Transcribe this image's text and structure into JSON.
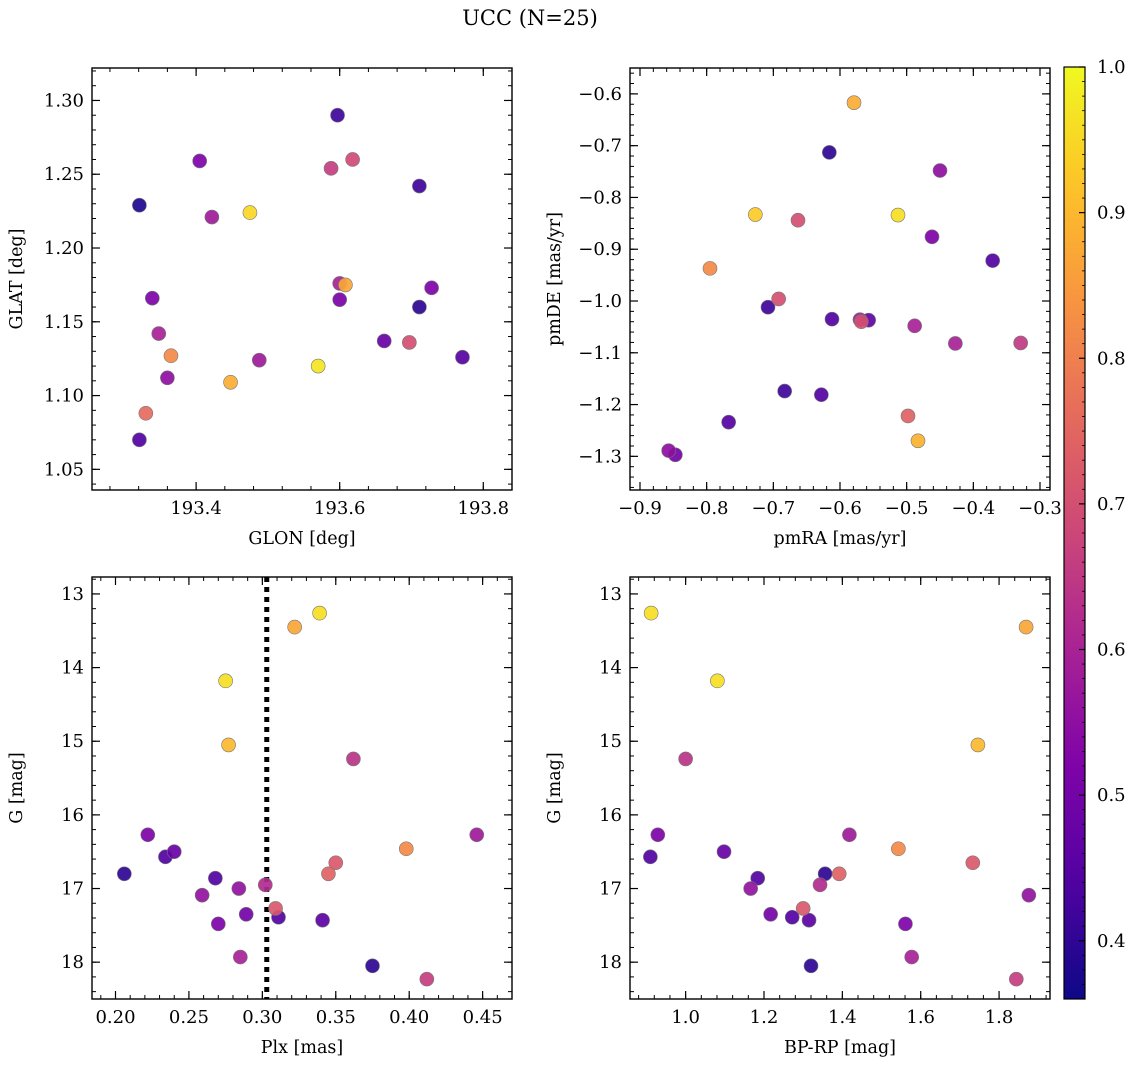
{
  "figure": {
    "title": "UCC (N=25)"
  },
  "colorbar": {
    "colormap": "plasma",
    "range": [
      0.36,
      1.0
    ],
    "ticks": [
      0.4,
      0.5,
      0.6,
      0.7,
      0.8,
      0.9,
      1.0
    ],
    "tick_labels": [
      "0.4",
      "0.5",
      "0.6",
      "0.7",
      "0.8",
      "0.9",
      "1.0"
    ]
  },
  "chart_data": [
    {
      "type": "scatter",
      "panel": "top-left",
      "xlabel": "GLON [deg]",
      "ylabel": "GLAT [deg]",
      "xlim": [
        193.255,
        193.84
      ],
      "ylim": [
        1.036,
        1.322
      ],
      "xticks": [
        193.4,
        193.6,
        193.8
      ],
      "yticks": [
        1.05,
        1.1,
        1.15,
        1.2,
        1.25,
        1.3
      ],
      "x_tick_labels": [
        "193.4",
        "193.6",
        "193.8"
      ],
      "y_tick_labels": [
        "1.05",
        "1.10",
        "1.15",
        "1.20",
        "1.25",
        "1.30"
      ],
      "points": [
        {
          "x": 193.321,
          "y": 1.229,
          "c": 0.38
        },
        {
          "x": 193.405,
          "y": 1.259,
          "c": 0.52
        },
        {
          "x": 193.422,
          "y": 1.221,
          "c": 0.58
        },
        {
          "x": 193.475,
          "y": 1.224,
          "c": 0.95
        },
        {
          "x": 193.597,
          "y": 1.29,
          "c": 0.42
        },
        {
          "x": 193.588,
          "y": 1.254,
          "c": 0.66
        },
        {
          "x": 193.618,
          "y": 1.26,
          "c": 0.69
        },
        {
          "x": 193.711,
          "y": 1.242,
          "c": 0.42
        },
        {
          "x": 193.339,
          "y": 1.166,
          "c": 0.52
        },
        {
          "x": 193.348,
          "y": 1.142,
          "c": 0.6
        },
        {
          "x": 193.365,
          "y": 1.127,
          "c": 0.82
        },
        {
          "x": 193.36,
          "y": 1.112,
          "c": 0.55
        },
        {
          "x": 193.33,
          "y": 1.088,
          "c": 0.76
        },
        {
          "x": 193.321,
          "y": 1.07,
          "c": 0.44
        },
        {
          "x": 193.448,
          "y": 1.109,
          "c": 0.88
        },
        {
          "x": 193.488,
          "y": 1.124,
          "c": 0.58
        },
        {
          "x": 193.57,
          "y": 1.12,
          "c": 0.97
        },
        {
          "x": 193.6,
          "y": 1.176,
          "c": 0.6
        },
        {
          "x": 193.608,
          "y": 1.175,
          "c": 0.87
        },
        {
          "x": 193.6,
          "y": 1.165,
          "c": 0.51
        },
        {
          "x": 193.662,
          "y": 1.137,
          "c": 0.48
        },
        {
          "x": 193.697,
          "y": 1.136,
          "c": 0.7
        },
        {
          "x": 193.711,
          "y": 1.16,
          "c": 0.4
        },
        {
          "x": 193.728,
          "y": 1.173,
          "c": 0.52
        },
        {
          "x": 193.771,
          "y": 1.126,
          "c": 0.45
        }
      ]
    },
    {
      "type": "scatter",
      "panel": "top-right",
      "xlabel": "pmRA [mas/yr]",
      "ylabel": "pmDE [mas/yr]",
      "xlim": [
        -0.915,
        -0.285
      ],
      "ylim": [
        -1.365,
        -0.55
      ],
      "xticks": [
        -0.9,
        -0.8,
        -0.7,
        -0.6,
        -0.5,
        -0.4,
        -0.3
      ],
      "yticks": [
        -1.3,
        -1.2,
        -1.1,
        -1.0,
        -0.9,
        -0.8,
        -0.7,
        -0.6
      ],
      "x_tick_labels": [
        "−0.9",
        "−0.8",
        "−0.7",
        "−0.6",
        "−0.5",
        "−0.4",
        "−0.3"
      ],
      "y_tick_labels": [
        "−1.3",
        "−1.2",
        "−1.1",
        "−1.0",
        "−0.9",
        "−0.8",
        "−0.7",
        "−0.6"
      ],
      "points": [
        {
          "x": -0.579,
          "y": -0.617,
          "c": 0.88
        },
        {
          "x": -0.616,
          "y": -0.713,
          "c": 0.4
        },
        {
          "x": -0.45,
          "y": -0.748,
          "c": 0.55
        },
        {
          "x": -0.727,
          "y": -0.833,
          "c": 0.93
        },
        {
          "x": -0.663,
          "y": -0.844,
          "c": 0.7
        },
        {
          "x": -0.513,
          "y": -0.834,
          "c": 0.96
        },
        {
          "x": -0.462,
          "y": -0.876,
          "c": 0.52
        },
        {
          "x": -0.371,
          "y": -0.922,
          "c": 0.44
        },
        {
          "x": -0.795,
          "y": -0.937,
          "c": 0.82
        },
        {
          "x": -0.692,
          "y": -0.996,
          "c": 0.7
        },
        {
          "x": -0.708,
          "y": -1.012,
          "c": 0.42
        },
        {
          "x": -0.612,
          "y": -1.035,
          "c": 0.44
        },
        {
          "x": -0.57,
          "y": -1.036,
          "c": 0.58
        },
        {
          "x": -0.568,
          "y": -1.04,
          "c": 0.7
        },
        {
          "x": -0.557,
          "y": -1.037,
          "c": 0.47
        },
        {
          "x": -0.488,
          "y": -1.048,
          "c": 0.6
        },
        {
          "x": -0.427,
          "y": -1.082,
          "c": 0.6
        },
        {
          "x": -0.329,
          "y": -1.081,
          "c": 0.65
        },
        {
          "x": -0.683,
          "y": -1.174,
          "c": 0.42
        },
        {
          "x": -0.628,
          "y": -1.181,
          "c": 0.44
        },
        {
          "x": -0.498,
          "y": -1.222,
          "c": 0.74
        },
        {
          "x": -0.767,
          "y": -1.234,
          "c": 0.45
        },
        {
          "x": -0.483,
          "y": -1.27,
          "c": 0.89
        },
        {
          "x": -0.857,
          "y": -1.289,
          "c": 0.55
        },
        {
          "x": -0.847,
          "y": -1.297,
          "c": 0.5
        }
      ]
    },
    {
      "type": "scatter",
      "panel": "bottom-left",
      "xlabel": "Plx [mas]",
      "ylabel": "G [mag]",
      "xlim": [
        0.184,
        0.47
      ],
      "ylim": [
        18.5,
        12.77
      ],
      "y_inverted": true,
      "xticks": [
        0.2,
        0.25,
        0.3,
        0.35,
        0.4,
        0.45
      ],
      "yticks": [
        13,
        14,
        15,
        16,
        17,
        18
      ],
      "x_tick_labels": [
        "0.20",
        "0.25",
        "0.30",
        "0.35",
        "0.40",
        "0.45"
      ],
      "y_tick_labels": [
        "13",
        "14",
        "15",
        "16",
        "17",
        "18"
      ],
      "vline": {
        "x": 0.303,
        "style": "dotted"
      },
      "points": [
        {
          "x": 0.339,
          "y": 13.26,
          "c": 0.96
        },
        {
          "x": 0.322,
          "y": 13.45,
          "c": 0.87
        },
        {
          "x": 0.275,
          "y": 14.18,
          "c": 0.96
        },
        {
          "x": 0.277,
          "y": 15.05,
          "c": 0.9
        },
        {
          "x": 0.362,
          "y": 15.24,
          "c": 0.64
        },
        {
          "x": 0.222,
          "y": 16.27,
          "c": 0.52
        },
        {
          "x": 0.446,
          "y": 16.27,
          "c": 0.58
        },
        {
          "x": 0.398,
          "y": 16.46,
          "c": 0.82
        },
        {
          "x": 0.24,
          "y": 16.5,
          "c": 0.48
        },
        {
          "x": 0.234,
          "y": 16.57,
          "c": 0.44
        },
        {
          "x": 0.35,
          "y": 16.65,
          "c": 0.72
        },
        {
          "x": 0.206,
          "y": 16.8,
          "c": 0.4
        },
        {
          "x": 0.345,
          "y": 16.8,
          "c": 0.74
        },
        {
          "x": 0.268,
          "y": 16.86,
          "c": 0.44
        },
        {
          "x": 0.302,
          "y": 16.95,
          "c": 0.62
        },
        {
          "x": 0.284,
          "y": 17.0,
          "c": 0.56
        },
        {
          "x": 0.259,
          "y": 17.09,
          "c": 0.56
        },
        {
          "x": 0.309,
          "y": 17.27,
          "c": 0.72
        },
        {
          "x": 0.289,
          "y": 17.35,
          "c": 0.5
        },
        {
          "x": 0.311,
          "y": 17.39,
          "c": 0.44
        },
        {
          "x": 0.341,
          "y": 17.43,
          "c": 0.46
        },
        {
          "x": 0.27,
          "y": 17.48,
          "c": 0.52
        },
        {
          "x": 0.285,
          "y": 17.93,
          "c": 0.6
        },
        {
          "x": 0.375,
          "y": 18.05,
          "c": 0.4
        },
        {
          "x": 0.412,
          "y": 18.23,
          "c": 0.66
        }
      ]
    },
    {
      "type": "scatter",
      "panel": "bottom-right",
      "xlabel": "BP-RP [mag]",
      "ylabel": "G [mag]",
      "xlim": [
        0.858,
        1.93
      ],
      "ylim": [
        18.5,
        12.77
      ],
      "y_inverted": true,
      "xticks": [
        1.0,
        1.2,
        1.4,
        1.6,
        1.8
      ],
      "yticks": [
        13,
        14,
        15,
        16,
        17,
        18
      ],
      "x_tick_labels": [
        "1.0",
        "1.2",
        "1.4",
        "1.6",
        "1.8"
      ],
      "y_tick_labels": [
        "13",
        "14",
        "15",
        "16",
        "17",
        "18"
      ],
      "points": [
        {
          "x": 0.912,
          "y": 13.26,
          "c": 0.96
        },
        {
          "x": 1.869,
          "y": 13.45,
          "c": 0.87
        },
        {
          "x": 1.081,
          "y": 14.18,
          "c": 0.96
        },
        {
          "x": 1.746,
          "y": 15.05,
          "c": 0.9
        },
        {
          "x": 1.0,
          "y": 15.24,
          "c": 0.64
        },
        {
          "x": 0.929,
          "y": 16.27,
          "c": 0.52
        },
        {
          "x": 1.418,
          "y": 16.27,
          "c": 0.58
        },
        {
          "x": 1.543,
          "y": 16.46,
          "c": 0.82
        },
        {
          "x": 1.098,
          "y": 16.5,
          "c": 0.48
        },
        {
          "x": 0.91,
          "y": 16.57,
          "c": 0.44
        },
        {
          "x": 1.733,
          "y": 16.65,
          "c": 0.72
        },
        {
          "x": 1.356,
          "y": 16.8,
          "c": 0.4
        },
        {
          "x": 1.392,
          "y": 16.8,
          "c": 0.74
        },
        {
          "x": 1.184,
          "y": 16.86,
          "c": 0.44
        },
        {
          "x": 1.343,
          "y": 16.95,
          "c": 0.62
        },
        {
          "x": 1.166,
          "y": 17.0,
          "c": 0.56
        },
        {
          "x": 1.876,
          "y": 17.09,
          "c": 0.56
        },
        {
          "x": 1.3,
          "y": 17.27,
          "c": 0.72
        },
        {
          "x": 1.217,
          "y": 17.35,
          "c": 0.5
        },
        {
          "x": 1.272,
          "y": 17.39,
          "c": 0.44
        },
        {
          "x": 1.315,
          "y": 17.43,
          "c": 0.46
        },
        {
          "x": 1.561,
          "y": 17.48,
          "c": 0.52
        },
        {
          "x": 1.577,
          "y": 17.93,
          "c": 0.6
        },
        {
          "x": 1.32,
          "y": 18.05,
          "c": 0.4
        },
        {
          "x": 1.844,
          "y": 18.23,
          "c": 0.66
        }
      ]
    }
  ]
}
